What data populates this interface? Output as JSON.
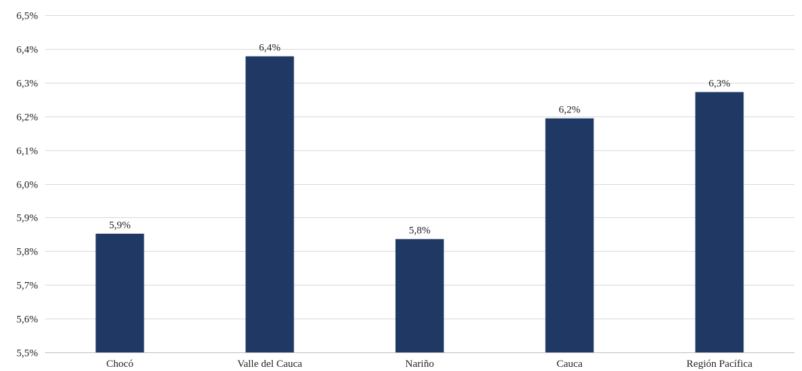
{
  "chart_data": {
    "type": "bar",
    "categories": [
      "Chocó",
      "Valle del Cauca",
      "Nariño",
      "Cauca",
      "Región Pacífica"
    ],
    "values": [
      5.852,
      6.378,
      5.836,
      6.194,
      6.272
    ],
    "data_labels": [
      "5,9%",
      "6,4%",
      "5,8%",
      "6,2%",
      "6,3%"
    ],
    "ylim": [
      5.5,
      6.5
    ],
    "ytick_values": [
      5.5,
      5.6,
      5.7,
      5.8,
      5.9,
      6.0,
      6.1,
      6.2,
      6.3,
      6.4,
      6.5
    ],
    "ytick_labels": [
      "5,5%",
      "5,6%",
      "5,7%",
      "5,8%",
      "5,9%",
      "6,0%",
      "6,1%",
      "6,2%",
      "6,3%",
      "6,4%",
      "6,5%"
    ],
    "title": "",
    "xlabel": "",
    "ylabel": "",
    "grid": true,
    "legend": "none",
    "bar_color": "#203864"
  }
}
